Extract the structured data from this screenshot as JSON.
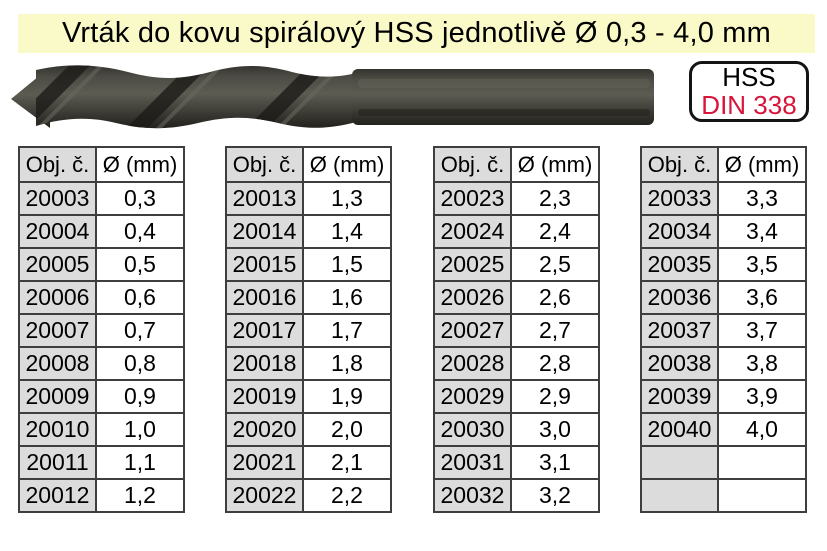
{
  "page": {
    "title": "Vrták do kovu spirálový HSS jednotlivě Ø 0,3 - 4,0 mm",
    "badge": {
      "hss": "HSS",
      "din": "DIN 338"
    },
    "drill_image": "spiral-hss-drill-bit-photo",
    "colors": {
      "banner_bg": "#FAFAC8",
      "cell_gray": "#DCDCDC",
      "table_border": "#3E3E3E",
      "din_red": "#D8143A"
    }
  },
  "tables": [
    {
      "headers": [
        "Obj. č.",
        "Ø (mm)"
      ],
      "rows": [
        [
          "20003",
          "0,3"
        ],
        [
          "20004",
          "0,4"
        ],
        [
          "20005",
          "0,5"
        ],
        [
          "20006",
          "0,6"
        ],
        [
          "20007",
          "0,7"
        ],
        [
          "20008",
          "0,8"
        ],
        [
          "20009",
          "0,9"
        ],
        [
          "20010",
          "1,0"
        ],
        [
          "20011",
          "1,1"
        ],
        [
          "20012",
          "1,2"
        ]
      ]
    },
    {
      "headers": [
        "Obj. č.",
        "Ø (mm)"
      ],
      "rows": [
        [
          "20013",
          "1,3"
        ],
        [
          "20014",
          "1,4"
        ],
        [
          "20015",
          "1,5"
        ],
        [
          "20016",
          "1,6"
        ],
        [
          "20017",
          "1,7"
        ],
        [
          "20018",
          "1,8"
        ],
        [
          "20019",
          "1,9"
        ],
        [
          "20020",
          "2,0"
        ],
        [
          "20021",
          "2,1"
        ],
        [
          "20022",
          "2,2"
        ]
      ]
    },
    {
      "headers": [
        "Obj. č.",
        "Ø (mm)"
      ],
      "rows": [
        [
          "20023",
          "2,3"
        ],
        [
          "20024",
          "2,4"
        ],
        [
          "20025",
          "2,5"
        ],
        [
          "20026",
          "2,6"
        ],
        [
          "20027",
          "2,7"
        ],
        [
          "20028",
          "2,8"
        ],
        [
          "20029",
          "2,9"
        ],
        [
          "20030",
          "3,0"
        ],
        [
          "20031",
          "3,1"
        ],
        [
          "20032",
          "3,2"
        ]
      ]
    },
    {
      "headers": [
        "Obj. č.",
        "Ø (mm)"
      ],
      "rows": [
        [
          "20033",
          "3,3"
        ],
        [
          "20034",
          "3,4"
        ],
        [
          "20035",
          "3,5"
        ],
        [
          "20036",
          "3,6"
        ],
        [
          "20037",
          "3,7"
        ],
        [
          "20038",
          "3,8"
        ],
        [
          "20039",
          "3,9"
        ],
        [
          "20040",
          "4,0"
        ],
        [
          "",
          ""
        ],
        [
          "",
          ""
        ]
      ]
    }
  ],
  "layout": {
    "table_lefts": [
      18,
      225,
      433,
      640
    ]
  }
}
